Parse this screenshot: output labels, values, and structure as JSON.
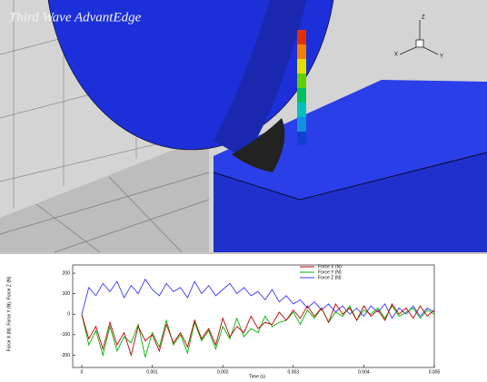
{
  "viewport": {
    "title": "Third Wave AdvantEdge",
    "axis_z": "Z",
    "axis_x": "X",
    "axis_y": "Y"
  },
  "chart_data": {
    "type": "line",
    "ylabel": "Force X (N), Force Y (N), Force Z (N)",
    "xlabel": "Time (s)",
    "x": [
      0,
      0.0001,
      0.0002,
      0.0003,
      0.0004,
      0.0005,
      0.0006,
      0.0007,
      0.0008,
      0.0009,
      0.001,
      0.0011,
      0.0012,
      0.0013,
      0.0014,
      0.0015,
      0.0016,
      0.0017,
      0.0018,
      0.0019,
      0.002,
      0.0021,
      0.0022,
      0.0023,
      0.0024,
      0.0025,
      0.0026,
      0.0027,
      0.0028,
      0.0029,
      0.003,
      0.0031,
      0.0032,
      0.0033,
      0.0034,
      0.0035,
      0.0036,
      0.0037,
      0.0038,
      0.0039,
      0.004,
      0.0041,
      0.0042,
      0.0043,
      0.0044,
      0.0045,
      0.0046,
      0.0047,
      0.0048,
      0.0049,
      0.005
    ],
    "series": [
      {
        "name": "Force X (N)",
        "color": "#c00000",
        "values": [
          0,
          -120,
          -60,
          -170,
          -40,
          -150,
          -90,
          -200,
          -60,
          -130,
          -100,
          -180,
          -50,
          -140,
          -90,
          -160,
          -30,
          -120,
          -70,
          -150,
          -20,
          -110,
          -60,
          -90,
          -10,
          -70,
          -40,
          -50,
          10,
          -30,
          20,
          -20,
          40,
          -10,
          30,
          -40,
          50,
          0,
          30,
          -30,
          40,
          -10,
          20,
          -30,
          50,
          0,
          30,
          -20,
          40,
          -10,
          20
        ]
      },
      {
        "name": "Force Y (N)",
        "color": "#00b000",
        "values": [
          0,
          -150,
          -80,
          -200,
          -60,
          -180,
          -110,
          -140,
          -50,
          -210,
          -90,
          -160,
          -30,
          -150,
          -100,
          -190,
          -40,
          -130,
          -80,
          -170,
          -60,
          -120,
          -20,
          -110,
          -70,
          -90,
          -10,
          -60,
          -40,
          -30,
          10,
          -50,
          20,
          -20,
          30,
          -40,
          10,
          -10,
          40,
          -30,
          20,
          0,
          30,
          -20,
          40,
          -10,
          10,
          30,
          -20,
          20,
          0
        ]
      },
      {
        "name": "Force Z (N)",
        "color": "#3a3aff",
        "values": [
          0,
          130,
          90,
          150,
          110,
          160,
          80,
          140,
          100,
          170,
          120,
          90,
          150,
          110,
          130,
          80,
          160,
          100,
          140,
          90,
          120,
          150,
          100,
          130,
          90,
          110,
          70,
          120,
          60,
          90,
          50,
          70,
          30,
          60,
          20,
          50,
          10,
          40,
          0,
          30,
          -10,
          40,
          10,
          50,
          -20,
          30,
          0,
          40,
          -10,
          30,
          10
        ]
      }
    ],
    "xlim": [
      0,
      0.005
    ],
    "xticks": [
      0,
      0.001,
      0.002,
      0.003,
      0.004,
      0.005
    ],
    "ylim": [
      -260,
      240
    ],
    "yticks": [
      -200,
      -100,
      0,
      100,
      200
    ],
    "legend": "upper right"
  }
}
